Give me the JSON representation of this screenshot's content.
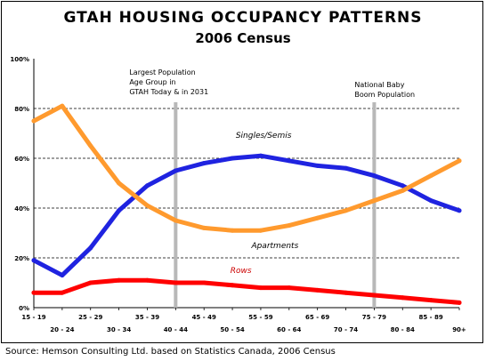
{
  "title": "GTAH HOUSING OCCUPANCY PATTERNS",
  "subtitle": "2006 Census",
  "source": "Source: Hemson Consulting Ltd. based on Statistics Canada, 2006 Census",
  "chart_data": {
    "type": "line",
    "title": "GTAH HOUSING OCCUPANCY PATTERNS",
    "subtitle": "2006 Census",
    "xlabel": "",
    "ylabel": "",
    "categories": [
      "15 - 19",
      "20 - 24",
      "25 - 29",
      "30 - 34",
      "35 - 39",
      "40 - 44",
      "45 - 49",
      "50 - 54",
      "55 - 59",
      "60 - 64",
      "65 - 69",
      "70 - 74",
      "75 - 79",
      "80 - 84",
      "85 - 89",
      "90+"
    ],
    "ylim": [
      0,
      100
    ],
    "yticks": [
      "0%",
      "20%",
      "40%",
      "60%",
      "80%",
      "100%"
    ],
    "grid": "horizontal dashed at 20% intervals",
    "series": [
      {
        "name": "Singles/Semis",
        "color": "#1f23e0",
        "values": [
          19,
          13,
          24,
          39,
          49,
          55,
          58,
          60,
          61,
          59,
          57,
          56,
          53,
          49,
          43,
          39
        ]
      },
      {
        "name": "Apartments",
        "color": "#ff9a2e",
        "values": [
          75,
          81,
          65,
          50,
          41,
          35,
          32,
          31,
          31,
          33,
          36,
          39,
          43,
          47,
          53,
          59
        ]
      },
      {
        "name": "Rows",
        "color": "#ff0000",
        "values": [
          6,
          6,
          10,
          11,
          11,
          10,
          10,
          9,
          8,
          8,
          7,
          6,
          5,
          4,
          3,
          2
        ]
      }
    ],
    "annotations": [
      {
        "category": "40 - 44",
        "lines": [
          "Largest Population",
          "Age Group in",
          "GTAH Today & in 2031"
        ]
      },
      {
        "category": "75 - 79",
        "lines": [
          "National Baby",
          "Boom Population"
        ]
      }
    ]
  }
}
